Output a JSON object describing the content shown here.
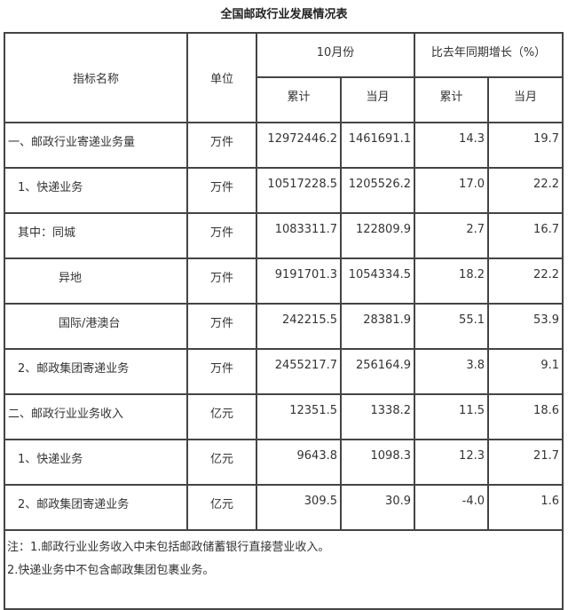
{
  "title": "全国邮政行业发展情况表",
  "header": {
    "indicator": "指标名称",
    "unit": "单位",
    "month_group": "10月份",
    "growth_group": "比去年同期增长（%）",
    "cumulative": "累计",
    "current": "当月"
  },
  "rows": [
    {
      "name": "一、邮政行业寄递业务量",
      "unit": "万件",
      "cum": "12972446.2",
      "cur": "1461691.1",
      "g_cum": "14.3",
      "g_cur": "19.7",
      "indent": 0
    },
    {
      "name": "1、快递业务",
      "unit": "万件",
      "cum": "10517228.5",
      "cur": "1205526.2",
      "g_cum": "17.0",
      "g_cur": "22.2",
      "indent": 1
    },
    {
      "name": "其中：同城",
      "unit": "万件",
      "cum": "1083311.7",
      "cur": "122809.9",
      "g_cum": "2.7",
      "g_cur": "16.7",
      "indent": 1
    },
    {
      "name": "异地",
      "unit": "万件",
      "cum": "9191701.3",
      "cur": "1054334.5",
      "g_cum": "18.2",
      "g_cur": "22.2",
      "indent": 2
    },
    {
      "name": "国际/港澳台",
      "unit": "万件",
      "cum": "242215.5",
      "cur": "28381.9",
      "g_cum": "55.1",
      "g_cur": "53.9",
      "indent": 2
    },
    {
      "name": "2、邮政集团寄递业务",
      "unit": "万件",
      "cum": "2455217.7",
      "cur": "256164.9",
      "g_cum": "3.8",
      "g_cur": "9.1",
      "indent": 1
    },
    {
      "name": "二、邮政行业业务收入",
      "unit": "亿元",
      "cum": "12351.5",
      "cur": "1338.2",
      "g_cum": "11.5",
      "g_cur": "18.6",
      "indent": 0
    },
    {
      "name": "1、快递业务",
      "unit": "亿元",
      "cum": "9643.8",
      "cur": "1098.3",
      "g_cum": "12.3",
      "g_cur": "21.7",
      "indent": 1
    },
    {
      "name": "2、邮政集团寄递业务",
      "unit": "亿元",
      "cum": "309.5",
      "cur": "30.9",
      "g_cum": "-4.0",
      "g_cur": "1.6",
      "indent": 1
    }
  ],
  "notes": [
    "注：1.邮政行业业务收入中未包括邮政储蓄银行直接营业收入。",
    "2.快递业务中不包含邮政集团包裹业务。"
  ]
}
